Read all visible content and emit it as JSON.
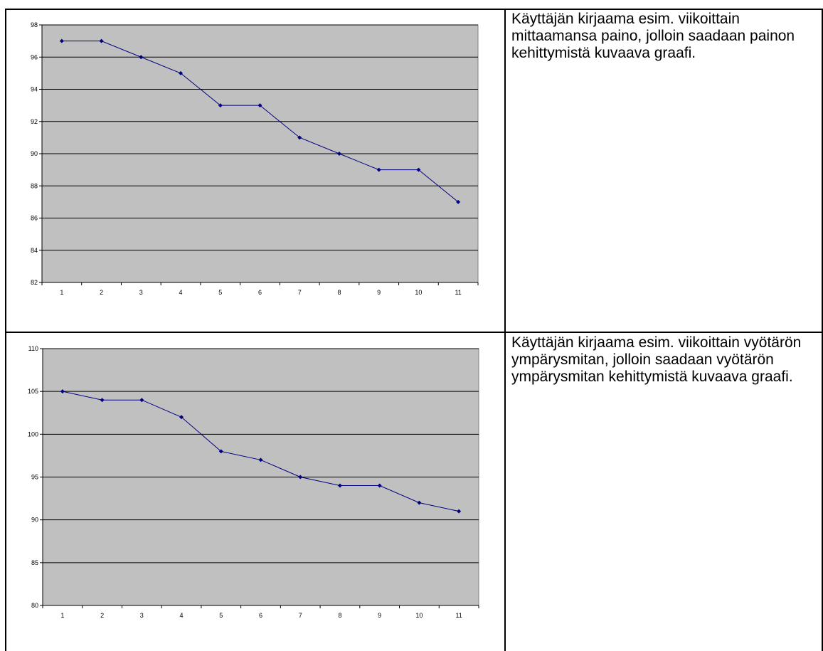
{
  "rows": [
    {
      "description": "Käyttäjän kirjaama esim. viikoittain mittaamansa paino, jolloin saadaan painon kehittymistä kuvaava graafi."
    },
    {
      "description": "Käyttäjän kirjaama esim. viikoittain vyötärön ympärysmitan, jolloin saadaan vyötärön ympärysmitan kehittymistä kuvaava graafi."
    }
  ],
  "colors": {
    "plot_background": "#c0c0c0",
    "gridline": "#000000",
    "series": "#000080"
  },
  "chart_data": [
    {
      "type": "line",
      "title": "",
      "xlabel": "",
      "ylabel": "",
      "x": [
        1,
        2,
        3,
        4,
        5,
        6,
        7,
        8,
        9,
        10,
        11
      ],
      "series": [
        {
          "values": [
            97,
            97,
            96,
            95,
            93,
            93,
            91,
            90,
            89,
            89,
            87
          ]
        }
      ],
      "ylim": [
        82,
        98
      ],
      "ytick_step": 2,
      "grid": true,
      "legend": "none"
    },
    {
      "type": "line",
      "title": "",
      "xlabel": "",
      "ylabel": "",
      "x": [
        1,
        2,
        3,
        4,
        5,
        6,
        7,
        8,
        9,
        10,
        11
      ],
      "series": [
        {
          "values": [
            105,
            104,
            104,
            102,
            98,
            97,
            95,
            94,
            94,
            92,
            91
          ]
        }
      ],
      "ylim": [
        80,
        110
      ],
      "ytick_step": 5,
      "grid": true,
      "legend": "none"
    }
  ]
}
